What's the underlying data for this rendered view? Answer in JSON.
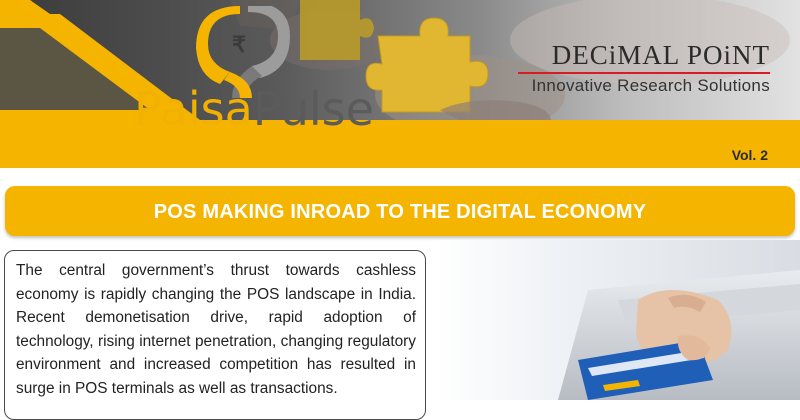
{
  "header": {
    "logo_symbol": "₹",
    "brand_part1": "Paisa",
    "brand_part2": "Pulse",
    "company_name": "DECiMAL POiNT",
    "company_tagline": "Innovative Research Solutions",
    "volume": "Vol. 2",
    "colors": {
      "accent_yellow": "#f4b400",
      "rule_red": "#d71d24",
      "brand_grey": "#5b5b5b"
    }
  },
  "article": {
    "headline": "POS MAKING INROAD TO THE DIGITAL ECONOMY",
    "body": "The central government’s thrust towards cashless economy is rapidly changing the POS landscape in India. Recent demonetisation drive, rapid adoption of technology, rising internet penetration, changing regulatory environment and increased competition has resulted in surge in POS terminals as well as transactions."
  },
  "images": {
    "banner_photo": "hands-assembling-puzzle-pieces",
    "article_photo": "hand-swiping-card-at-pos-terminal"
  }
}
